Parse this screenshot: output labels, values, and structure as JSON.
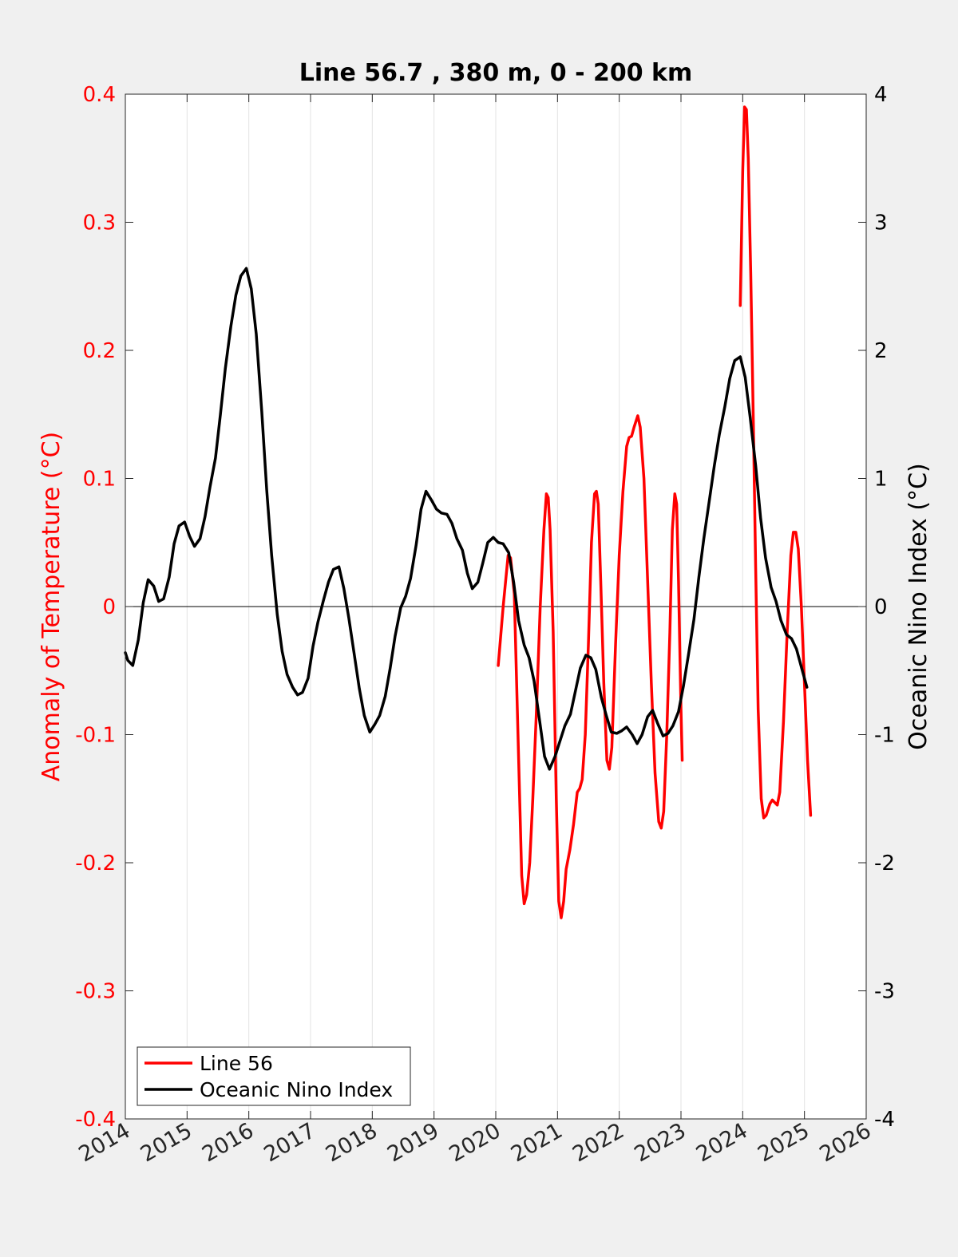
{
  "chart_data": {
    "type": "line",
    "title": "Line 56.7 , 380 m, 0 - 200 km",
    "xlabel": "",
    "ylabel_left": "Anomaly of Temperature (°C)",
    "ylabel_right": "Oceanic Nino Index (°C)",
    "xlim": [
      2014,
      2026
    ],
    "ylim_left": [
      -0.4,
      0.4
    ],
    "ylim_right": [
      -4,
      4
    ],
    "x_ticks": [
      "2014",
      "2015",
      "2016",
      "2017",
      "2018",
      "2019",
      "2020",
      "2021",
      "2022",
      "2023",
      "2024",
      "2025",
      "2026"
    ],
    "y_ticks_left": [
      "-0.4",
      "-0.3",
      "-0.2",
      "-0.1",
      "0",
      "0.1",
      "0.2",
      "0.3",
      "0.4"
    ],
    "y_ticks_right": [
      "-4",
      "-3",
      "-2",
      "-1",
      "0",
      "1",
      "2",
      "3",
      "4"
    ],
    "grid": "vertical",
    "legend_position": "bottom-left",
    "colors": {
      "left_axis": "#ff0000",
      "right_axis": "#000000",
      "background": "#f0f0f0",
      "plot_bg": "#ffffff",
      "grid": "#e3e3e3"
    },
    "series": [
      {
        "name": "Line 56",
        "color": "#ff0000",
        "axis": "left",
        "segments": [
          [
            [
              2020.04,
              -0.046
            ],
            [
              2020.12,
              0.0
            ],
            [
              2020.2,
              0.04
            ],
            [
              2020.24,
              0.038
            ],
            [
              2020.3,
              0.01
            ],
            [
              2020.36,
              -0.1
            ],
            [
              2020.42,
              -0.21
            ],
            [
              2020.46,
              -0.232
            ],
            [
              2020.5,
              -0.225
            ],
            [
              2020.55,
              -0.2
            ],
            [
              2020.6,
              -0.15
            ],
            [
              2020.66,
              -0.08
            ],
            [
              2020.72,
              0.0
            ],
            [
              2020.78,
              0.06
            ],
            [
              2020.82,
              0.088
            ],
            [
              2020.85,
              0.085
            ],
            [
              2020.88,
              0.06
            ],
            [
              2020.93,
              -0.02
            ],
            [
              2020.98,
              -0.15
            ],
            [
              2021.02,
              -0.23
            ],
            [
              2021.06,
              -0.243
            ],
            [
              2021.1,
              -0.23
            ],
            [
              2021.14,
              -0.205
            ],
            [
              2021.2,
              -0.19
            ],
            [
              2021.26,
              -0.17
            ],
            [
              2021.32,
              -0.145
            ],
            [
              2021.36,
              -0.142
            ],
            [
              2021.4,
              -0.135
            ],
            [
              2021.45,
              -0.1
            ],
            [
              2021.5,
              -0.03
            ],
            [
              2021.55,
              0.05
            ],
            [
              2021.6,
              0.088
            ],
            [
              2021.63,
              0.09
            ],
            [
              2021.66,
              0.08
            ],
            [
              2021.7,
              0.02
            ],
            [
              2021.75,
              -0.06
            ],
            [
              2021.8,
              -0.12
            ],
            [
              2021.84,
              -0.127
            ],
            [
              2021.88,
              -0.11
            ],
            [
              2021.94,
              -0.03
            ],
            [
              2022.0,
              0.04
            ],
            [
              2022.06,
              0.09
            ],
            [
              2022.12,
              0.125
            ],
            [
              2022.16,
              0.132
            ],
            [
              2022.2,
              0.133
            ],
            [
              2022.24,
              0.14
            ],
            [
              2022.3,
              0.149
            ],
            [
              2022.34,
              0.14
            ],
            [
              2022.4,
              0.1
            ],
            [
              2022.46,
              0.02
            ],
            [
              2022.52,
              -0.06
            ],
            [
              2022.58,
              -0.13
            ],
            [
              2022.64,
              -0.168
            ],
            [
              2022.68,
              -0.173
            ],
            [
              2022.72,
              -0.16
            ],
            [
              2022.77,
              -0.1
            ],
            [
              2022.82,
              -0.02
            ],
            [
              2022.86,
              0.06
            ],
            [
              2022.9,
              0.088
            ],
            [
              2022.93,
              0.08
            ],
            [
              2022.96,
              0.02
            ],
            [
              2023.0,
              -0.08
            ],
            [
              2023.02,
              -0.12
            ]
          ],
          [
            [
              2023.96,
              0.235
            ],
            [
              2024.0,
              0.34
            ],
            [
              2024.03,
              0.39
            ],
            [
              2024.06,
              0.388
            ],
            [
              2024.09,
              0.35
            ],
            [
              2024.13,
              0.26
            ],
            [
              2024.17,
              0.15
            ],
            [
              2024.21,
              0.03
            ],
            [
              2024.25,
              -0.08
            ],
            [
              2024.3,
              -0.15
            ],
            [
              2024.34,
              -0.165
            ],
            [
              2024.38,
              -0.163
            ],
            [
              2024.44,
              -0.154
            ],
            [
              2024.48,
              -0.151
            ],
            [
              2024.52,
              -0.153
            ],
            [
              2024.56,
              -0.155
            ],
            [
              2024.6,
              -0.145
            ],
            [
              2024.66,
              -0.09
            ],
            [
              2024.72,
              -0.02
            ],
            [
              2024.78,
              0.04
            ],
            [
              2024.82,
              0.058
            ],
            [
              2024.86,
              0.058
            ],
            [
              2024.9,
              0.045
            ],
            [
              2024.95,
              0.0
            ],
            [
              2025.0,
              -0.06
            ],
            [
              2025.05,
              -0.12
            ],
            [
              2025.1,
              -0.163
            ]
          ]
        ]
      },
      {
        "name": "Oceanic Nino Index",
        "color": "#000000",
        "axis": "right",
        "segments": [
          [
            [
              2014.0,
              -0.36
            ],
            [
              2014.04,
              -0.42
            ],
            [
              2014.12,
              -0.46
            ],
            [
              2014.21,
              -0.26
            ],
            [
              2014.29,
              0.03
            ],
            [
              2014.37,
              0.21
            ],
            [
              2014.46,
              0.16
            ],
            [
              2014.54,
              0.04
            ],
            [
              2014.62,
              0.06
            ],
            [
              2014.71,
              0.23
            ],
            [
              2014.79,
              0.49
            ],
            [
              2014.87,
              0.63
            ],
            [
              2014.96,
              0.66
            ],
            [
              2015.04,
              0.55
            ],
            [
              2015.12,
              0.47
            ],
            [
              2015.21,
              0.53
            ],
            [
              2015.29,
              0.7
            ],
            [
              2015.37,
              0.93
            ],
            [
              2015.46,
              1.16
            ],
            [
              2015.54,
              1.5
            ],
            [
              2015.62,
              1.86
            ],
            [
              2015.71,
              2.19
            ],
            [
              2015.79,
              2.43
            ],
            [
              2015.87,
              2.58
            ],
            [
              2015.96,
              2.64
            ],
            [
              2016.04,
              2.48
            ],
            [
              2016.12,
              2.13
            ],
            [
              2016.21,
              1.52
            ],
            [
              2016.29,
              0.91
            ],
            [
              2016.37,
              0.4
            ],
            [
              2016.46,
              -0.06
            ],
            [
              2016.54,
              -0.35
            ],
            [
              2016.62,
              -0.53
            ],
            [
              2016.71,
              -0.63
            ],
            [
              2016.79,
              -0.69
            ],
            [
              2016.87,
              -0.67
            ],
            [
              2016.96,
              -0.56
            ],
            [
              2017.04,
              -0.31
            ],
            [
              2017.12,
              -0.12
            ],
            [
              2017.21,
              0.05
            ],
            [
              2017.29,
              0.19
            ],
            [
              2017.37,
              0.29
            ],
            [
              2017.46,
              0.31
            ],
            [
              2017.54,
              0.14
            ],
            [
              2017.62,
              -0.09
            ],
            [
              2017.71,
              -0.38
            ],
            [
              2017.79,
              -0.64
            ],
            [
              2017.87,
              -0.85
            ],
            [
              2017.96,
              -0.98
            ],
            [
              2018.04,
              -0.92
            ],
            [
              2018.12,
              -0.85
            ],
            [
              2018.21,
              -0.7
            ],
            [
              2018.29,
              -0.48
            ],
            [
              2018.37,
              -0.23
            ],
            [
              2018.46,
              -0.01
            ],
            [
              2018.54,
              0.08
            ],
            [
              2018.62,
              0.22
            ],
            [
              2018.71,
              0.48
            ],
            [
              2018.79,
              0.76
            ],
            [
              2018.87,
              0.9
            ],
            [
              2018.96,
              0.83
            ],
            [
              2019.04,
              0.76
            ],
            [
              2019.12,
              0.73
            ],
            [
              2019.21,
              0.72
            ],
            [
              2019.29,
              0.65
            ],
            [
              2019.37,
              0.53
            ],
            [
              2019.46,
              0.44
            ],
            [
              2019.54,
              0.26
            ],
            [
              2019.62,
              0.14
            ],
            [
              2019.71,
              0.19
            ],
            [
              2019.79,
              0.34
            ],
            [
              2019.87,
              0.5
            ],
            [
              2019.96,
              0.54
            ],
            [
              2020.04,
              0.5
            ],
            [
              2020.12,
              0.49
            ],
            [
              2020.21,
              0.42
            ],
            [
              2020.29,
              0.19
            ],
            [
              2020.37,
              -0.11
            ],
            [
              2020.46,
              -0.3
            ],
            [
              2020.54,
              -0.4
            ],
            [
              2020.62,
              -0.58
            ],
            [
              2020.71,
              -0.89
            ],
            [
              2020.79,
              -1.17
            ],
            [
              2020.87,
              -1.27
            ],
            [
              2020.96,
              -1.17
            ],
            [
              2021.04,
              -1.05
            ],
            [
              2021.12,
              -0.93
            ],
            [
              2021.21,
              -0.84
            ],
            [
              2021.29,
              -0.66
            ],
            [
              2021.37,
              -0.48
            ],
            [
              2021.46,
              -0.38
            ],
            [
              2021.54,
              -0.4
            ],
            [
              2021.62,
              -0.49
            ],
            [
              2021.71,
              -0.71
            ],
            [
              2021.79,
              -0.85
            ],
            [
              2021.87,
              -0.98
            ],
            [
              2021.96,
              -0.99
            ],
            [
              2022.04,
              -0.97
            ],
            [
              2022.12,
              -0.94
            ],
            [
              2022.21,
              -1.0
            ],
            [
              2022.29,
              -1.07
            ],
            [
              2022.37,
              -1.0
            ],
            [
              2022.46,
              -0.86
            ],
            [
              2022.54,
              -0.81
            ],
            [
              2022.62,
              -0.91
            ],
            [
              2022.71,
              -1.01
            ],
            [
              2022.79,
              -0.99
            ],
            [
              2022.87,
              -0.93
            ],
            [
              2022.96,
              -0.82
            ],
            [
              2023.04,
              -0.62
            ],
            [
              2023.12,
              -0.38
            ],
            [
              2023.21,
              -0.1
            ],
            [
              2023.29,
              0.23
            ],
            [
              2023.37,
              0.53
            ],
            [
              2023.46,
              0.83
            ],
            [
              2023.54,
              1.1
            ],
            [
              2023.62,
              1.34
            ],
            [
              2023.71,
              1.56
            ],
            [
              2023.79,
              1.78
            ],
            [
              2023.87,
              1.92
            ],
            [
              2023.96,
              1.95
            ],
            [
              2024.04,
              1.79
            ],
            [
              2024.12,
              1.48
            ],
            [
              2024.21,
              1.1
            ],
            [
              2024.29,
              0.69
            ],
            [
              2024.37,
              0.38
            ],
            [
              2024.46,
              0.15
            ],
            [
              2024.54,
              0.04
            ],
            [
              2024.62,
              -0.11
            ],
            [
              2024.71,
              -0.22
            ],
            [
              2024.79,
              -0.25
            ],
            [
              2024.87,
              -0.33
            ],
            [
              2024.96,
              -0.49
            ],
            [
              2025.04,
              -0.63
            ]
          ]
        ]
      }
    ]
  }
}
